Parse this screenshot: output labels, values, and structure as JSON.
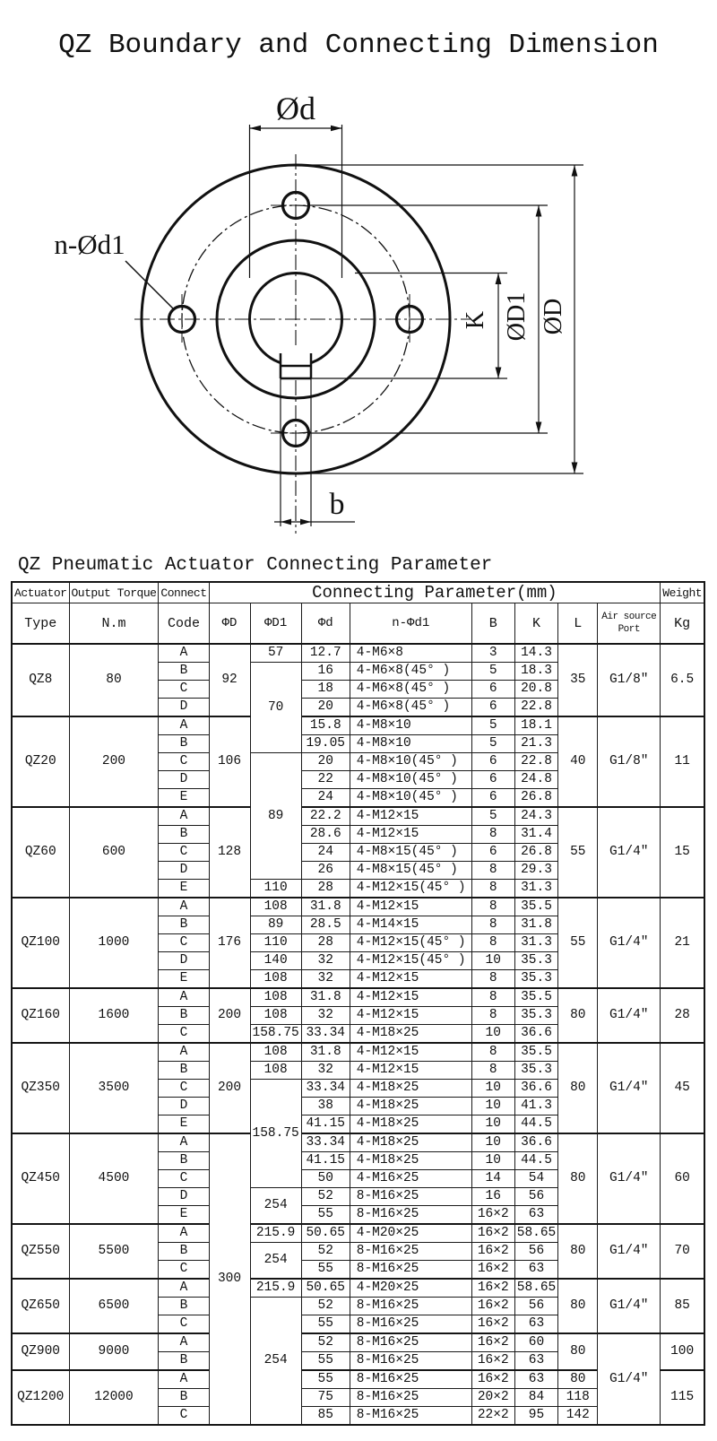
{
  "page_title": "QZ Boundary and Connecting Dimension",
  "subtitle": "QZ Pneumatic Actuator Connecting Parameter",
  "diagram": {
    "labels": {
      "bore_diameter": "Ød",
      "bolt_holes": "n-Ød1",
      "key_depth": "K",
      "bolt_circle_diameter": "ØD1",
      "outer_diameter": "ØD",
      "key_width": "b"
    }
  },
  "table": {
    "header": {
      "actuator": "Actuator",
      "type": "Type",
      "output_torque": "Output Torque",
      "nm": "N.m",
      "connect": "Connect",
      "code": "Code",
      "connecting_parameter": "Connecting Parameter(mm)",
      "weight": "Weight",
      "kg": "Kg",
      "phi_D": "ΦD",
      "phi_D1": "ΦD1",
      "phi_d": "Φd",
      "n_phi_d1": "n-Φd1",
      "b": "B",
      "k": "K",
      "l": "L",
      "air_source_port": "Air source Port"
    },
    "group_start_rows": [
      5,
      10,
      15,
      20,
      23,
      28,
      33,
      36,
      39,
      41
    ],
    "rows": [
      [
        [
          "QZ8",
          4
        ],
        [
          "80",
          4
        ],
        [
          "A"
        ],
        [
          "92",
          4
        ],
        [
          "57"
        ],
        [
          "12.7"
        ],
        [
          "4-M6×8"
        ],
        [
          "3"
        ],
        [
          "14.3"
        ],
        [
          "35",
          4
        ],
        [
          "G1/8″",
          4
        ],
        [
          "6.5",
          4
        ]
      ],
      [
        [
          "B"
        ],
        [
          "70",
          5
        ],
        [
          "16"
        ],
        [
          "4-M6×8(45° )"
        ],
        [
          "5"
        ],
        [
          "18.3"
        ]
      ],
      [
        [
          "C"
        ],
        [
          "18"
        ],
        [
          "4-M6×8(45° )"
        ],
        [
          "6"
        ],
        [
          "20.8"
        ]
      ],
      [
        [
          "D"
        ],
        [
          "20"
        ],
        [
          "4-M6×8(45° )"
        ],
        [
          "6"
        ],
        [
          "22.8"
        ]
      ],
      [
        [
          "QZ20",
          5
        ],
        [
          "200",
          5
        ],
        [
          "A"
        ],
        [
          "106",
          5
        ],
        [
          "15.8"
        ],
        [
          "4-M8×10"
        ],
        [
          "5"
        ],
        [
          "18.1"
        ],
        [
          "40",
          5
        ],
        [
          "G1/8″",
          5
        ],
        [
          "11",
          5
        ]
      ],
      [
        [
          "B"
        ],
        [
          "19.05"
        ],
        [
          "4-M8×10"
        ],
        [
          "5"
        ],
        [
          "21.3"
        ]
      ],
      [
        [
          "C"
        ],
        [
          "89",
          7
        ],
        [
          "20"
        ],
        [
          "4-M8×10(45° )"
        ],
        [
          "6"
        ],
        [
          "22.8"
        ]
      ],
      [
        [
          "D"
        ],
        [
          "22"
        ],
        [
          "4-M8×10(45° )"
        ],
        [
          "6"
        ],
        [
          "24.8"
        ]
      ],
      [
        [
          "E"
        ],
        [
          "24"
        ],
        [
          "4-M8×10(45° )"
        ],
        [
          "6"
        ],
        [
          "26.8"
        ]
      ],
      [
        [
          "QZ60",
          5
        ],
        [
          "600",
          5
        ],
        [
          "A"
        ],
        [
          "128",
          5
        ],
        [
          "22.2"
        ],
        [
          "4-M12×15"
        ],
        [
          "5"
        ],
        [
          "24.3"
        ],
        [
          "55",
          5
        ],
        [
          "G1/4″",
          5
        ],
        [
          "15",
          5
        ]
      ],
      [
        [
          "B"
        ],
        [
          "28.6"
        ],
        [
          "4-M12×15"
        ],
        [
          "8"
        ],
        [
          "31.4"
        ]
      ],
      [
        [
          "C"
        ],
        [
          "24"
        ],
        [
          "4-M8×15(45° )"
        ],
        [
          "6"
        ],
        [
          "26.8"
        ]
      ],
      [
        [
          "D"
        ],
        [
          "26"
        ],
        [
          "4-M8×15(45° )"
        ],
        [
          "8"
        ],
        [
          "29.3"
        ]
      ],
      [
        [
          "E"
        ],
        [
          "110"
        ],
        [
          "28"
        ],
        [
          "4-M12×15(45° )"
        ],
        [
          "8"
        ],
        [
          "31.3"
        ]
      ],
      [
        [
          "QZ100",
          5
        ],
        [
          "1000",
          5
        ],
        [
          "A"
        ],
        [
          "176",
          5
        ],
        [
          "108"
        ],
        [
          "31.8"
        ],
        [
          "4-M12×15"
        ],
        [
          "8"
        ],
        [
          "35.5"
        ],
        [
          "55",
          5
        ],
        [
          "G1/4″",
          5
        ],
        [
          "21",
          5
        ]
      ],
      [
        [
          "B"
        ],
        [
          "89"
        ],
        [
          "28.5"
        ],
        [
          "4-M14×15"
        ],
        [
          "8"
        ],
        [
          "31.8"
        ]
      ],
      [
        [
          "C"
        ],
        [
          "110"
        ],
        [
          "28"
        ],
        [
          "4-M12×15(45° )"
        ],
        [
          "8"
        ],
        [
          "31.3"
        ]
      ],
      [
        [
          "D"
        ],
        [
          "140"
        ],
        [
          "32"
        ],
        [
          "4-M12×15(45° )"
        ],
        [
          "10"
        ],
        [
          "35.3"
        ]
      ],
      [
        [
          "E"
        ],
        [
          "108"
        ],
        [
          "32"
        ],
        [
          "4-M12×15"
        ],
        [
          "8"
        ],
        [
          "35.3"
        ]
      ],
      [
        [
          "QZ160",
          3
        ],
        [
          "1600",
          3
        ],
        [
          "A"
        ],
        [
          "200",
          3
        ],
        [
          "108"
        ],
        [
          "31.8"
        ],
        [
          "4-M12×15"
        ],
        [
          "8"
        ],
        [
          "35.5"
        ],
        [
          "80",
          3
        ],
        [
          "G1/4″",
          3
        ],
        [
          "28",
          3
        ]
      ],
      [
        [
          "B"
        ],
        [
          "108"
        ],
        [
          "32"
        ],
        [
          "4-M12×15"
        ],
        [
          "8"
        ],
        [
          "35.3"
        ]
      ],
      [
        [
          "C"
        ],
        [
          "158.75"
        ],
        [
          "33.34"
        ],
        [
          "4-M18×25"
        ],
        [
          "10"
        ],
        [
          "36.6"
        ]
      ],
      [
        [
          "QZ350",
          5
        ],
        [
          "3500",
          5
        ],
        [
          "A"
        ],
        [
          "200",
          5
        ],
        [
          "108"
        ],
        [
          "31.8"
        ],
        [
          "4-M12×15"
        ],
        [
          "8"
        ],
        [
          "35.5"
        ],
        [
          "80",
          5
        ],
        [
          "G1/4″",
          5
        ],
        [
          "45",
          5
        ]
      ],
      [
        [
          "B"
        ],
        [
          "108"
        ],
        [
          "32"
        ],
        [
          "4-M12×15"
        ],
        [
          "8"
        ],
        [
          "35.3"
        ]
      ],
      [
        [
          "C"
        ],
        [
          "158.75",
          6
        ],
        [
          "33.34"
        ],
        [
          "4-M18×25"
        ],
        [
          "10"
        ],
        [
          "36.6"
        ]
      ],
      [
        [
          "D"
        ],
        [
          "38"
        ],
        [
          "4-M18×25"
        ],
        [
          "10"
        ],
        [
          "41.3"
        ]
      ],
      [
        [
          "E"
        ],
        [
          "41.15"
        ],
        [
          "4-M18×25"
        ],
        [
          "10"
        ],
        [
          "44.5"
        ]
      ],
      [
        [
          "QZ450",
          5
        ],
        [
          "4500",
          5
        ],
        [
          "A"
        ],
        [
          "300",
          16
        ],
        [
          "33.34"
        ],
        [
          "4-M18×25"
        ],
        [
          "10"
        ],
        [
          "36.6"
        ],
        [
          "80",
          5
        ],
        [
          "G1/4″",
          5
        ],
        [
          "60",
          5
        ]
      ],
      [
        [
          "B"
        ],
        [
          "41.15"
        ],
        [
          "4-M18×25"
        ],
        [
          "10"
        ],
        [
          "44.5"
        ]
      ],
      [
        [
          "C"
        ],
        [
          "50"
        ],
        [
          "4-M16×25"
        ],
        [
          "14"
        ],
        [
          "54"
        ]
      ],
      [
        [
          "D"
        ],
        [
          "254",
          2
        ],
        [
          "52"
        ],
        [
          "8-M16×25"
        ],
        [
          "16"
        ],
        [
          "56"
        ]
      ],
      [
        [
          "E"
        ],
        [
          "55"
        ],
        [
          "8-M16×25"
        ],
        [
          "16×2"
        ],
        [
          "63"
        ]
      ],
      [
        [
          "QZ550",
          3
        ],
        [
          "5500",
          3
        ],
        [
          "A"
        ],
        [
          "215.9"
        ],
        [
          "50.65"
        ],
        [
          "4-M20×25"
        ],
        [
          "16×2"
        ],
        [
          "58.65"
        ],
        [
          "80",
          3
        ],
        [
          "G1/4″",
          3
        ],
        [
          "70",
          3
        ]
      ],
      [
        [
          "B"
        ],
        [
          "254",
          2
        ],
        [
          "52"
        ],
        [
          "8-M16×25"
        ],
        [
          "16×2"
        ],
        [
          "56"
        ]
      ],
      [
        [
          "C"
        ],
        [
          "55"
        ],
        [
          "8-M16×25"
        ],
        [
          "16×2"
        ],
        [
          "63"
        ]
      ],
      [
        [
          "QZ650",
          3
        ],
        [
          "6500",
          3
        ],
        [
          "A"
        ],
        [
          "215.9"
        ],
        [
          "50.65"
        ],
        [
          "4-M20×25"
        ],
        [
          "16×2"
        ],
        [
          "58.65"
        ],
        [
          "80",
          3
        ],
        [
          "G1/4″",
          3
        ],
        [
          "85",
          3
        ]
      ],
      [
        [
          "B"
        ],
        [
          "254",
          7
        ],
        [
          "52"
        ],
        [
          "8-M16×25"
        ],
        [
          "16×2"
        ],
        [
          "56"
        ]
      ],
      [
        [
          "C"
        ],
        [
          "55"
        ],
        [
          "8-M16×25"
        ],
        [
          "16×2"
        ],
        [
          "63"
        ]
      ],
      [
        [
          "QZ900",
          2
        ],
        [
          "9000",
          2
        ],
        [
          "A"
        ],
        [
          "52"
        ],
        [
          "8-M16×25"
        ],
        [
          "16×2"
        ],
        [
          "60"
        ],
        [
          "80",
          2
        ],
        [
          "G1/4″",
          5
        ],
        [
          "100",
          2
        ]
      ],
      [
        [
          "B"
        ],
        [
          "55"
        ],
        [
          "8-M16×25"
        ],
        [
          "16×2"
        ],
        [
          "63"
        ]
      ],
      [
        [
          "QZ1200",
          3
        ],
        [
          "12000",
          3
        ],
        [
          "A"
        ],
        [
          "55"
        ],
        [
          "8-M16×25"
        ],
        [
          "16×2"
        ],
        [
          "63"
        ],
        [
          "80"
        ],
        [
          "115",
          3
        ]
      ],
      [
        [
          "B"
        ],
        [
          "75"
        ],
        [
          "8-M16×25"
        ],
        [
          "20×2"
        ],
        [
          "84"
        ],
        [
          "118"
        ]
      ],
      [
        [
          "C"
        ],
        [
          "85"
        ],
        [
          "8-M16×25"
        ],
        [
          "22×2"
        ],
        [
          "95"
        ],
        [
          "142"
        ]
      ]
    ]
  }
}
